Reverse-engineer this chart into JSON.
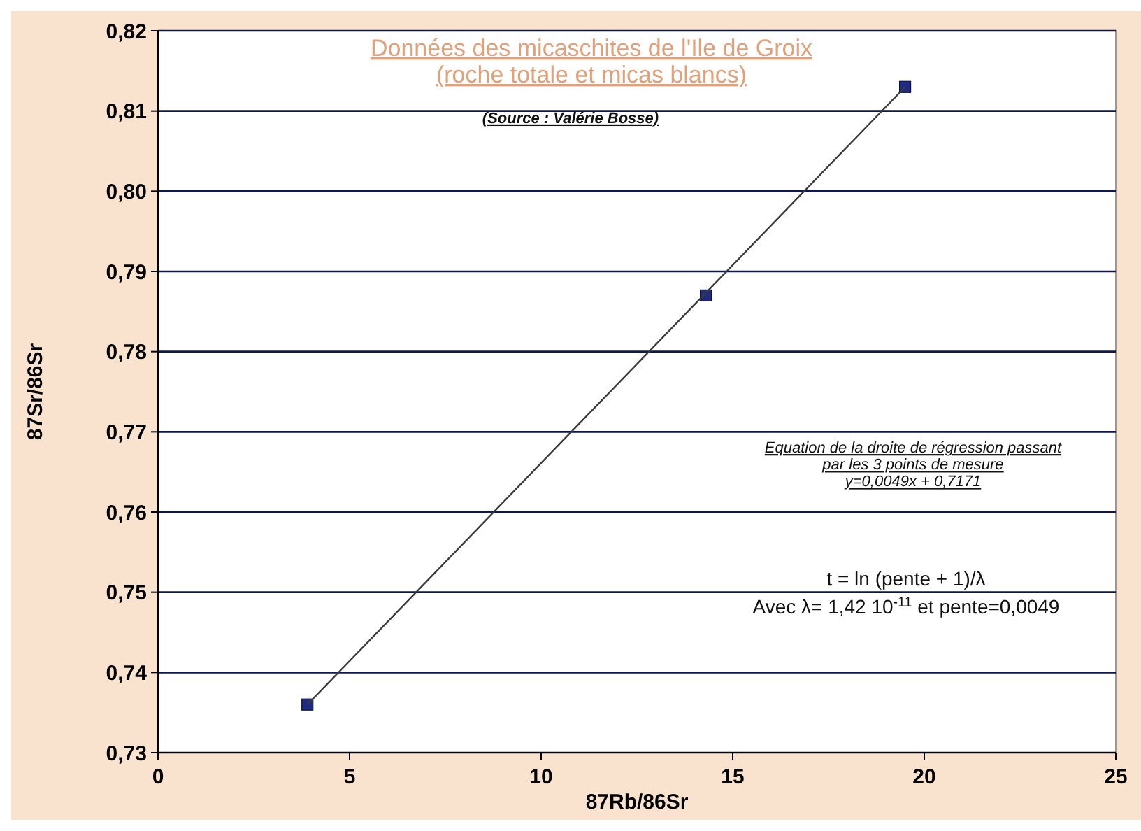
{
  "chart_data": {
    "type": "scatter",
    "title": "Données des micaschites de l'Ile de Groix\n(roche totale et micas blancs)",
    "xlabel": "87Rb/86Sr",
    "ylabel": "87Sr/86Sr",
    "annotations": [
      "(Source : Valérie Bosse)",
      "Equation de la droite de régression passant\npar les 3 points de mesure\ny=0,0049x + 0,7171",
      "t = ln (pente  + 1)/λ\nAvec λ= 1,42 10$^{-11}$ et pente=0,0049"
    ],
    "x": [
      3.9,
      14.3,
      19.5
    ],
    "series": [
      {
        "color": "#1f2a80",
        "values": [
          0.736,
          0.787,
          0.813
        ],
        "marker": "square"
      },
      {
        "type": "line",
        "color": "#3a3a3a",
        "x": [
          3.9,
          19.5
        ],
        "values": [
          0.736,
          0.813
        ],
        "marker": "none"
      }
    ],
    "xlim": [
      0,
      25
    ],
    "xticks": [
      {
        "value": 0,
        "label": "0"
      },
      {
        "value": 5,
        "label": "5"
      },
      {
        "value": 10,
        "label": "10"
      },
      {
        "value": 15,
        "label": "15"
      },
      {
        "value": 20,
        "label": "20"
      },
      {
        "value": 25,
        "label": "25"
      }
    ],
    "ylim": [
      0.73,
      0.82
    ],
    "yticks": [
      {
        "value": 0.73,
        "label": "0,73"
      },
      {
        "value": 0.74,
        "label": "0,74"
      },
      {
        "value": 0.75,
        "label": "0,75"
      },
      {
        "value": 0.76,
        "label": "0,76"
      },
      {
        "value": 0.77,
        "label": "0,77"
      },
      {
        "value": 0.78,
        "label": "0,78"
      },
      {
        "value": 0.79,
        "label": "0,79"
      },
      {
        "value": 0.8,
        "label": "0,80"
      },
      {
        "value": 0.81,
        "label": "0,81"
      },
      {
        "value": 0.82,
        "label": "0,82"
      }
    ],
    "grid": "y"
  }
}
